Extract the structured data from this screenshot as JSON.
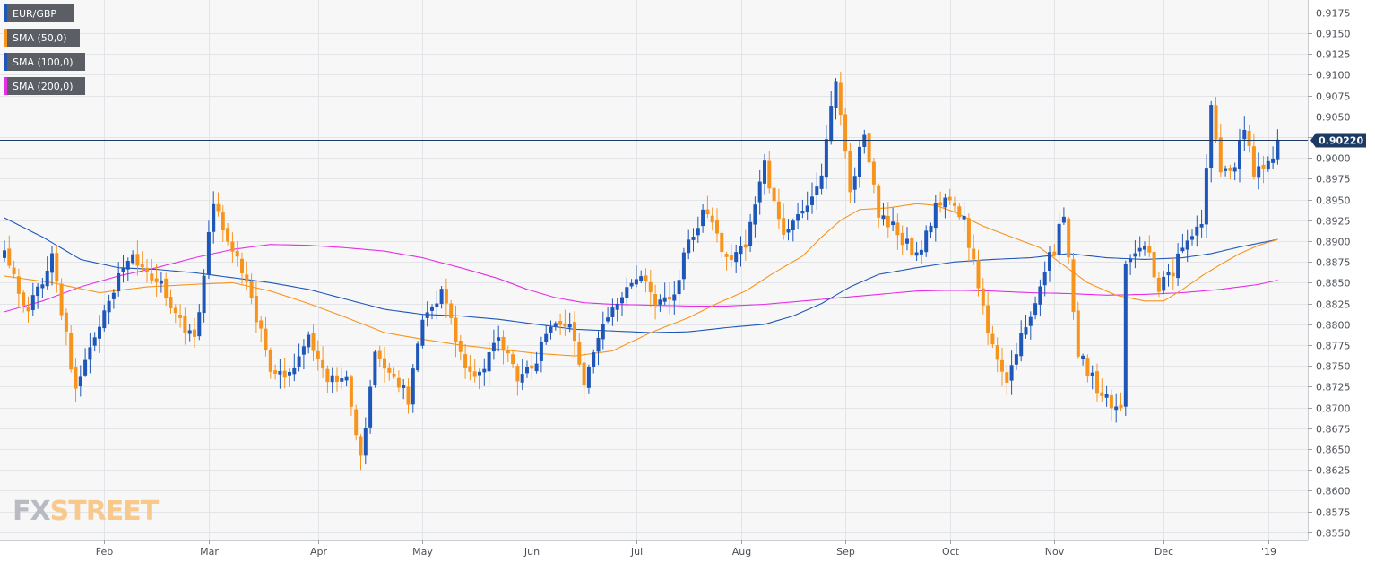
{
  "chart_data": {
    "type": "candlestick",
    "instrument": "EUR/GBP",
    "timeframe": "daily",
    "ylim": [
      0.854,
      0.919
    ],
    "y_ticks": [
      "0.9175",
      "0.9150",
      "0.9125",
      "0.9100",
      "0.9075",
      "0.9050",
      "0.9025",
      "0.9000",
      "0.8975",
      "0.8950",
      "0.8925",
      "0.8900",
      "0.8875",
      "0.8850",
      "0.8825",
      "0.8800",
      "0.8775",
      "0.8750",
      "0.8725",
      "0.8700",
      "0.8675",
      "0.8650",
      "0.8625",
      "0.8600",
      "0.8575",
      "0.8550"
    ],
    "x_ticks": [
      "Feb",
      "Mar",
      "Apr",
      "May",
      "Jun",
      "Jul",
      "Aug",
      "Sep",
      "Oct",
      "Nov",
      "Dec",
      "'19"
    ],
    "x_tick_index": [
      21,
      43,
      66,
      88,
      111,
      133,
      155,
      177,
      199,
      221,
      244,
      266
    ],
    "last_price": "0.90220",
    "legend": [
      "EUR/GBP",
      "SMA (50,0)",
      "SMA (100,0)",
      "SMA (200,0)"
    ],
    "series_colors": {
      "up": "#1f57b8",
      "down": "#f7941d",
      "sma50": "#f7941d",
      "sma100": "#1f57b8",
      "sma200": "#e62ee6",
      "last_price_line": "#1c3a63"
    },
    "anchors": [
      [
        0,
        0.8885
      ],
      [
        5,
        0.8815
      ],
      [
        10,
        0.888
      ],
      [
        15,
        0.872
      ],
      [
        20,
        0.88
      ],
      [
        26,
        0.888
      ],
      [
        30,
        0.887
      ],
      [
        35,
        0.882
      ],
      [
        40,
        0.878
      ],
      [
        44,
        0.895
      ],
      [
        48,
        0.889
      ],
      [
        52,
        0.883
      ],
      [
        56,
        0.875
      ],
      [
        60,
        0.874
      ],
      [
        64,
        0.878
      ],
      [
        68,
        0.873
      ],
      [
        72,
        0.874
      ],
      [
        75,
        0.864
      ],
      [
        78,
        0.876
      ],
      [
        82,
        0.874
      ],
      [
        85,
        0.871
      ],
      [
        88,
        0.88
      ],
      [
        92,
        0.884
      ],
      [
        96,
        0.876
      ],
      [
        100,
        0.873
      ],
      [
        104,
        0.879
      ],
      [
        108,
        0.873
      ],
      [
        112,
        0.876
      ],
      [
        115,
        0.88
      ],
      [
        119,
        0.88
      ],
      [
        122,
        0.873
      ],
      [
        126,
        0.88
      ],
      [
        130,
        0.883
      ],
      [
        133,
        0.886
      ],
      [
        137,
        0.883
      ],
      [
        141,
        0.884
      ],
      [
        144,
        0.89
      ],
      [
        148,
        0.894
      ],
      [
        152,
        0.888
      ],
      [
        156,
        0.889
      ],
      [
        160,
        0.899
      ],
      [
        164,
        0.891
      ],
      [
        168,
        0.893
      ],
      [
        172,
        0.898
      ],
      [
        175,
        0.91
      ],
      [
        178,
        0.896
      ],
      [
        181,
        0.903
      ],
      [
        184,
        0.893
      ],
      [
        188,
        0.891
      ],
      [
        192,
        0.888
      ],
      [
        196,
        0.894
      ],
      [
        198,
        0.896
      ],
      [
        202,
        0.892
      ],
      [
        205,
        0.885
      ],
      [
        208,
        0.877
      ],
      [
        211,
        0.873
      ],
      [
        214,
        0.879
      ],
      [
        217,
        0.883
      ],
      [
        220,
        0.888
      ],
      [
        223,
        0.893
      ],
      [
        226,
        0.876
      ],
      [
        229,
        0.873
      ],
      [
        232,
        0.871
      ],
      [
        235,
        0.87
      ],
      [
        236,
        0.887
      ],
      [
        240,
        0.89
      ],
      [
        243,
        0.884
      ],
      [
        247,
        0.888
      ],
      [
        250,
        0.89
      ],
      [
        252,
        0.892
      ],
      [
        254,
        0.906
      ],
      [
        256,
        0.898
      ],
      [
        259,
        0.899
      ],
      [
        261,
        0.904
      ],
      [
        263,
        0.898
      ],
      [
        266,
        0.899
      ],
      [
        268,
        0.9022
      ]
    ],
    "sma50_points": [
      [
        0,
        0.8858
      ],
      [
        10,
        0.885
      ],
      [
        20,
        0.8838
      ],
      [
        30,
        0.8845
      ],
      [
        40,
        0.8848
      ],
      [
        48,
        0.885
      ],
      [
        56,
        0.884
      ],
      [
        64,
        0.8825
      ],
      [
        72,
        0.8808
      ],
      [
        80,
        0.879
      ],
      [
        88,
        0.8782
      ],
      [
        96,
        0.8775
      ],
      [
        104,
        0.877
      ],
      [
        112,
        0.8765
      ],
      [
        120,
        0.8762
      ],
      [
        128,
        0.8768
      ],
      [
        136,
        0.879
      ],
      [
        144,
        0.8808
      ],
      [
        150,
        0.8825
      ],
      [
        156,
        0.884
      ],
      [
        162,
        0.8862
      ],
      [
        168,
        0.8882
      ],
      [
        172,
        0.8905
      ],
      [
        176,
        0.8925
      ],
      [
        180,
        0.8938
      ],
      [
        186,
        0.894
      ],
      [
        192,
        0.8945
      ],
      [
        196,
        0.8943
      ],
      [
        200,
        0.8935
      ],
      [
        206,
        0.8918
      ],
      [
        212,
        0.8905
      ],
      [
        218,
        0.8892
      ],
      [
        222,
        0.8875
      ],
      [
        228,
        0.885
      ],
      [
        234,
        0.8835
      ],
      [
        240,
        0.8828
      ],
      [
        244,
        0.8828
      ],
      [
        248,
        0.8842
      ],
      [
        252,
        0.8858
      ],
      [
        256,
        0.8872
      ],
      [
        260,
        0.8885
      ],
      [
        264,
        0.8895
      ],
      [
        268,
        0.8902
      ]
    ],
    "sma100_points": [
      [
        0,
        0.8928
      ],
      [
        8,
        0.8905
      ],
      [
        16,
        0.8878
      ],
      [
        24,
        0.8868
      ],
      [
        32,
        0.8866
      ],
      [
        40,
        0.8862
      ],
      [
        48,
        0.8856
      ],
      [
        56,
        0.885
      ],
      [
        64,
        0.8842
      ],
      [
        72,
        0.883
      ],
      [
        80,
        0.8818
      ],
      [
        88,
        0.8812
      ],
      [
        96,
        0.881
      ],
      [
        104,
        0.8806
      ],
      [
        112,
        0.88
      ],
      [
        120,
        0.8794
      ],
      [
        128,
        0.8792
      ],
      [
        136,
        0.879
      ],
      [
        144,
        0.8791
      ],
      [
        152,
        0.8796
      ],
      [
        160,
        0.88
      ],
      [
        166,
        0.881
      ],
      [
        172,
        0.8825
      ],
      [
        178,
        0.8845
      ],
      [
        184,
        0.886
      ],
      [
        192,
        0.8868
      ],
      [
        200,
        0.8875
      ],
      [
        208,
        0.8878
      ],
      [
        216,
        0.888
      ],
      [
        224,
        0.8885
      ],
      [
        232,
        0.888
      ],
      [
        240,
        0.8878
      ],
      [
        248,
        0.888
      ],
      [
        254,
        0.8885
      ],
      [
        260,
        0.8893
      ],
      [
        268,
        0.8902
      ]
    ],
    "sma200_points": [
      [
        0,
        0.8815
      ],
      [
        8,
        0.8828
      ],
      [
        16,
        0.8845
      ],
      [
        24,
        0.8858
      ],
      [
        32,
        0.8868
      ],
      [
        40,
        0.888
      ],
      [
        48,
        0.889
      ],
      [
        56,
        0.8896
      ],
      [
        64,
        0.8895
      ],
      [
        72,
        0.8892
      ],
      [
        80,
        0.8888
      ],
      [
        88,
        0.888
      ],
      [
        96,
        0.8868
      ],
      [
        104,
        0.8855
      ],
      [
        110,
        0.8842
      ],
      [
        116,
        0.8832
      ],
      [
        122,
        0.8826
      ],
      [
        128,
        0.8824
      ],
      [
        136,
        0.8823
      ],
      [
        144,
        0.8822
      ],
      [
        152,
        0.8822
      ],
      [
        160,
        0.8824
      ],
      [
        168,
        0.8828
      ],
      [
        176,
        0.8832
      ],
      [
        184,
        0.8836
      ],
      [
        192,
        0.884
      ],
      [
        200,
        0.8841
      ],
      [
        208,
        0.884
      ],
      [
        216,
        0.8838
      ],
      [
        224,
        0.8837
      ],
      [
        232,
        0.8835
      ],
      [
        240,
        0.8836
      ],
      [
        248,
        0.8838
      ],
      [
        256,
        0.8842
      ],
      [
        264,
        0.8848
      ],
      [
        268,
        0.8853
      ]
    ]
  },
  "brand": {
    "logo_fx": "FX",
    "logo_street": "STREET"
  }
}
